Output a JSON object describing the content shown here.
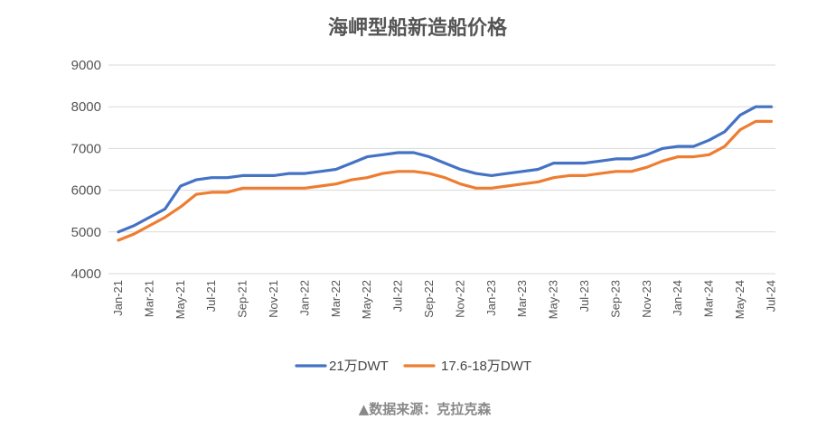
{
  "chart_data": {
    "type": "line",
    "title": "海岬型船新造船价格",
    "source": "▲数据来源：克拉克森",
    "ylim": [
      4000,
      9000
    ],
    "yticks": [
      4000,
      5000,
      6000,
      7000,
      8000,
      9000
    ],
    "grid": true,
    "legend_position": "bottom",
    "x": [
      "Jan-21",
      "Feb-21",
      "Mar-21",
      "Apr-21",
      "May-21",
      "Jun-21",
      "Jul-21",
      "Aug-21",
      "Sep-21",
      "Oct-21",
      "Nov-21",
      "Dec-21",
      "Jan-22",
      "Feb-22",
      "Mar-22",
      "Apr-22",
      "May-22",
      "Jun-22",
      "Jul-22",
      "Aug-22",
      "Sep-22",
      "Oct-22",
      "Nov-22",
      "Dec-22",
      "Jan-23",
      "Feb-23",
      "Mar-23",
      "Apr-23",
      "May-23",
      "Jun-23",
      "Jul-23",
      "Aug-23",
      "Sep-23",
      "Oct-23",
      "Nov-23",
      "Dec-23",
      "Jan-24",
      "Feb-24",
      "Mar-24",
      "Apr-24",
      "May-24",
      "Jun-24",
      "Jul-24"
    ],
    "tick_labels": [
      "Jan-21",
      "Mar-21",
      "May-21",
      "Jul-21",
      "Sep-21",
      "Nov-21",
      "Jan-22",
      "Mar-22",
      "May-22",
      "Jul-22",
      "Sep-22",
      "Nov-22",
      "Jan-23",
      "Mar-23",
      "May-23",
      "Jul-23",
      "Sep-23",
      "Nov-23",
      "Jan-24",
      "Mar-24",
      "May-24",
      "Jul-24"
    ],
    "series": [
      {
        "name": "21万DWT",
        "color": "#4472C4",
        "values": [
          5000,
          5150,
          5350,
          5550,
          6100,
          6250,
          6300,
          6300,
          6350,
          6350,
          6350,
          6400,
          6400,
          6450,
          6500,
          6650,
          6800,
          6850,
          6900,
          6900,
          6800,
          6650,
          6500,
          6400,
          6350,
          6400,
          6450,
          6500,
          6650,
          6650,
          6650,
          6700,
          6750,
          6750,
          6850,
          7000,
          7050,
          7050,
          7200,
          7400,
          7800,
          8000,
          8000
        ]
      },
      {
        "name": "17.6-18万DWT",
        "color": "#ED7D31",
        "values": [
          4800,
          4950,
          5150,
          5350,
          5600,
          5900,
          5950,
          5950,
          6050,
          6050,
          6050,
          6050,
          6050,
          6100,
          6150,
          6250,
          6300,
          6400,
          6450,
          6450,
          6400,
          6300,
          6150,
          6050,
          6050,
          6100,
          6150,
          6200,
          6300,
          6350,
          6350,
          6400,
          6450,
          6450,
          6550,
          6700,
          6800,
          6800,
          6850,
          7050,
          7450,
          7650,
          7650
        ]
      }
    ]
  }
}
